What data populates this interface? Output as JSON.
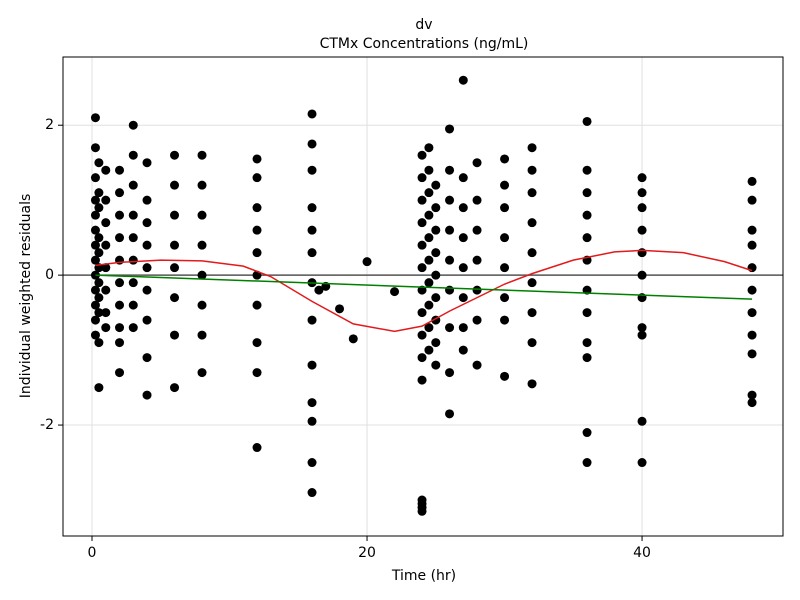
{
  "chart_data": {
    "type": "scatter",
    "title": "dv",
    "subtitle": "CTMx Concentrations (ng/mL)",
    "x_label": "Time (hr)",
    "y_label": "Individual weighted residuals",
    "xlim": [
      -2.11,
      50.25
    ],
    "ylim": [
      -3.48,
      2.91
    ],
    "xticks": [
      0,
      20,
      40
    ],
    "yticks": [
      -2,
      0,
      2
    ],
    "grid": true,
    "hline": 0,
    "series": [
      {
        "type": "scatter",
        "color": "#000000",
        "x": [
          0.25,
          0.25,
          0.25,
          0.25,
          0.25,
          0.25,
          0.25,
          0.25,
          0.25,
          0.25,
          0.25,
          0.25,
          0.25,
          0.5,
          0.5,
          0.5,
          0.5,
          0.5,
          0.5,
          0.5,
          0.5,
          0.5,
          0.5,
          0.5,
          1,
          1,
          1,
          1,
          1,
          1,
          1,
          1,
          2,
          2,
          2,
          2,
          2,
          2,
          2,
          2,
          2,
          2,
          3,
          3,
          3,
          3,
          3,
          3,
          3,
          3,
          3,
          4,
          4,
          4,
          4,
          4,
          4,
          4,
          4,
          4,
          6,
          6,
          6,
          6,
          6,
          6,
          6,
          6,
          8,
          8,
          8,
          8,
          8,
          8,
          8,
          8,
          12,
          12,
          12,
          12,
          12,
          12,
          12,
          12,
          12,
          12,
          16,
          16,
          16,
          16,
          16,
          16,
          16,
          16,
          16,
          16,
          16,
          16,
          16,
          16.5,
          17,
          18,
          19,
          20,
          22,
          24,
          24,
          24,
          24,
          24,
          24,
          24,
          24,
          24,
          24,
          24,
          24,
          24,
          24,
          24,
          24.5,
          24.5,
          24.5,
          24.5,
          24.5,
          24.5,
          24.5,
          24.5,
          24.5,
          24.5,
          25,
          25,
          25,
          25,
          25,
          25,
          25,
          25,
          25,
          26,
          26,
          26,
          26,
          26,
          26,
          26,
          26,
          26,
          27,
          27,
          27,
          27,
          27,
          27,
          27,
          27,
          28,
          28,
          28,
          28,
          28,
          28,
          28,
          30,
          30,
          30,
          30,
          30,
          30,
          30,
          30,
          32,
          32,
          32,
          32,
          32,
          32,
          32,
          32,
          32,
          36,
          36,
          36,
          36,
          36,
          36,
          36,
          36,
          36,
          36,
          36,
          36,
          40,
          40,
          40,
          40,
          40,
          40,
          40,
          40,
          40,
          40,
          40,
          48,
          48,
          48,
          48,
          48,
          48,
          48,
          48,
          48,
          48,
          48
        ],
        "values": [
          2.1,
          1.7,
          1.3,
          1.0,
          0.8,
          0.6,
          0.4,
          0.2,
          0.0,
          -0.2,
          -0.4,
          -0.6,
          -0.8,
          1.5,
          1.1,
          0.9,
          0.5,
          0.3,
          0.1,
          -0.1,
          -0.3,
          -0.5,
          -0.9,
          -1.5,
          1.4,
          1.0,
          0.7,
          0.4,
          0.1,
          -0.2,
          -0.5,
          -0.7,
          1.4,
          1.1,
          0.8,
          0.5,
          0.2,
          -0.1,
          -0.4,
          -0.7,
          -0.9,
          -1.3,
          2.0,
          1.6,
          1.2,
          0.8,
          0.5,
          0.2,
          -0.1,
          -0.4,
          -0.7,
          1.5,
          1.0,
          0.7,
          0.4,
          0.1,
          -0.2,
          -0.6,
          -1.1,
          -1.6,
          1.6,
          1.2,
          0.8,
          0.4,
          0.1,
          -0.3,
          -0.8,
          -1.5,
          1.6,
          1.2,
          0.8,
          0.4,
          0.0,
          -0.4,
          -0.8,
          -1.3,
          1.55,
          1.3,
          0.9,
          0.6,
          0.3,
          0.0,
          -0.4,
          -0.9,
          -1.3,
          -2.3,
          2.15,
          1.75,
          1.4,
          0.9,
          0.6,
          0.3,
          -0.1,
          -0.6,
          -1.2,
          -1.7,
          -1.95,
          -2.5,
          -2.9,
          -0.2,
          -0.15,
          -0.45,
          -0.85,
          0.18,
          -0.22,
          1.6,
          1.3,
          1.0,
          0.7,
          0.4,
          0.1,
          -0.2,
          -0.5,
          -0.8,
          -1.1,
          -1.4,
          -3.0,
          -3.05,
          -3.1,
          -3.15,
          1.7,
          1.4,
          1.1,
          0.8,
          0.5,
          0.2,
          -0.1,
          -0.4,
          -0.7,
          -1.0,
          1.2,
          0.9,
          0.6,
          0.3,
          0.0,
          -0.3,
          -0.6,
          -0.9,
          -1.2,
          1.95,
          1.4,
          1.0,
          0.6,
          0.2,
          -0.2,
          -0.7,
          -1.3,
          -1.85,
          2.6,
          1.3,
          0.9,
          0.5,
          0.1,
          -0.3,
          -0.7,
          -1.0,
          1.5,
          1.0,
          0.6,
          0.2,
          -0.2,
          -0.6,
          -1.2,
          1.55,
          1.2,
          0.9,
          0.5,
          0.1,
          -0.3,
          -0.6,
          -1.35,
          1.7,
          1.4,
          1.1,
          0.7,
          0.3,
          -0.1,
          -0.5,
          -0.9,
          -1.45,
          2.05,
          1.4,
          1.1,
          0.8,
          0.5,
          0.2,
          -0.2,
          -0.5,
          -0.9,
          -1.1,
          -2.1,
          -2.5,
          1.3,
          1.1,
          0.9,
          0.6,
          0.3,
          0.0,
          -0.3,
          -0.7,
          -0.8,
          -1.95,
          -2.5,
          1.25,
          1.0,
          0.6,
          0.4,
          0.1,
          -0.2,
          -0.5,
          -0.8,
          -1.05,
          -1.6,
          -1.7
        ]
      },
      {
        "type": "line",
        "color": "#e31a1c",
        "x": [
          0.25,
          2,
          5,
          8,
          11,
          13,
          16,
          19,
          22,
          24,
          26,
          28,
          30,
          32,
          35,
          38,
          40,
          43,
          46,
          48
        ],
        "values": [
          0.13,
          0.17,
          0.2,
          0.19,
          0.12,
          -0.02,
          -0.35,
          -0.65,
          -0.75,
          -0.68,
          -0.48,
          -0.3,
          -0.12,
          0.02,
          0.2,
          0.31,
          0.33,
          0.3,
          0.18,
          0.06
        ]
      },
      {
        "type": "line",
        "color": "#008000",
        "x": [
          0.25,
          48
        ],
        "values": [
          0.0,
          -0.32
        ]
      }
    ]
  }
}
